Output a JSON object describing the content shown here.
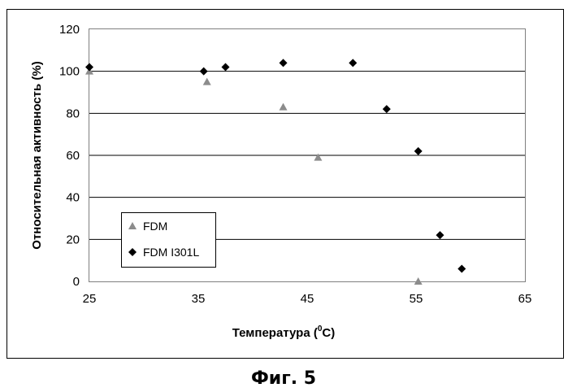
{
  "caption": "Фиг. 5",
  "chart_data": {
    "type": "scatter",
    "title": "",
    "xlabel_main": "Температура (",
    "xlabel_sup": "0",
    "xlabel_end": "C)",
    "ylabel": "Относительная активность (%)",
    "xlim": [
      25,
      65
    ],
    "ylim": [
      0,
      120
    ],
    "xticks": [
      "25",
      "35",
      "45",
      "55",
      "65"
    ],
    "yticks": [
      "0",
      "20",
      "40",
      "60",
      "80",
      "100",
      "120"
    ],
    "grid": "horizontal",
    "legend_position": "bottom-left",
    "series": [
      {
        "name": "FDM",
        "marker": "triangle",
        "color": "#8c8c8c",
        "x": [
          25,
          35.8,
          42.8,
          46,
          55.2
        ],
        "y": [
          100,
          95,
          83,
          59,
          0
        ]
      },
      {
        "name": "FDM I301L",
        "marker": "diamond",
        "color": "#000000",
        "x": [
          25,
          35.5,
          37.5,
          42.8,
          49.2,
          52.3,
          55.2,
          57.2,
          59.2
        ],
        "y": [
          102,
          100,
          102,
          104,
          104,
          82,
          62,
          22,
          6
        ]
      }
    ]
  }
}
